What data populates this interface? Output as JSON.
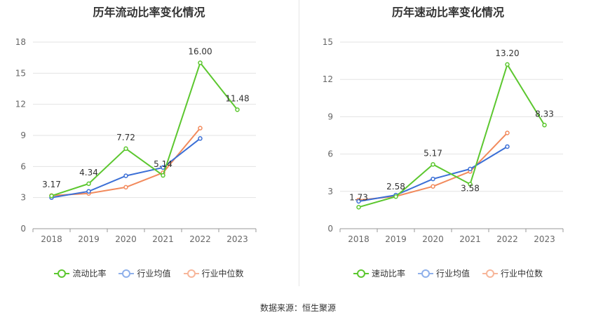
{
  "footer": "数据来源：恒生聚源",
  "chart_data": [
    {
      "type": "line",
      "title": "历年流动比率变化情况",
      "categories": [
        "2018",
        "2019",
        "2020",
        "2021",
        "2022",
        "2023"
      ],
      "ylim": [
        0,
        18
      ],
      "yticks": [
        0,
        3,
        6,
        9,
        12,
        15,
        18
      ],
      "grid": true,
      "legend_position": "bottom",
      "series": [
        {
          "name": "流动比率",
          "color": "#5cc72f",
          "values": [
            3.17,
            4.34,
            7.72,
            5.14,
            16.0,
            11.48
          ],
          "labels": [
            "3.17",
            "4.34",
            "7.72",
            "5.14",
            "16.00",
            "11.48"
          ]
        },
        {
          "name": "行业均值",
          "color": "#3b6fd6",
          "values": [
            3.0,
            3.6,
            5.1,
            5.9,
            8.7,
            null
          ]
        },
        {
          "name": "行业中位数",
          "color": "#f28a5c",
          "values": [
            3.2,
            3.4,
            4.0,
            5.4,
            9.7,
            null
          ]
        }
      ]
    },
    {
      "type": "line",
      "title": "历年速动比率变化情况",
      "categories": [
        "2018",
        "2019",
        "2020",
        "2021",
        "2022",
        "2023"
      ],
      "ylim": [
        0,
        15
      ],
      "yticks": [
        0,
        3,
        6,
        9,
        12,
        15
      ],
      "grid": true,
      "legend_position": "bottom",
      "series": [
        {
          "name": "速动比率",
          "color": "#5cc72f",
          "values": [
            1.73,
            2.58,
            5.17,
            3.58,
            13.2,
            8.33
          ],
          "labels": [
            "1.73",
            "2.58",
            "5.17",
            "3.58",
            "13.20",
            "8.33"
          ]
        },
        {
          "name": "行业均值",
          "color": "#3b6fd6",
          "values": [
            2.2,
            2.7,
            4.0,
            4.8,
            6.6,
            null
          ]
        },
        {
          "name": "行业中位数",
          "color": "#f28a5c",
          "values": [
            2.3,
            2.6,
            3.4,
            4.6,
            7.7,
            null
          ]
        }
      ]
    }
  ]
}
